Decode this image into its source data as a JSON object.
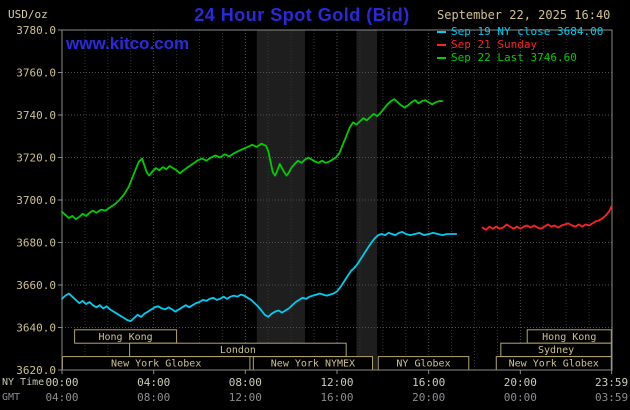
{
  "header": {
    "units": "USD/oz",
    "title": "24 Hour Spot Gold (Bid)",
    "datetime": "September 22, 2025 16:40",
    "site": "www.kitco.com"
  },
  "legend": {
    "items": [
      {
        "label": "Sep 19 NY close 3684.00",
        "color": "#00ccf0"
      },
      {
        "label": "Sep 21 Sunday",
        "color": "#ff2222"
      },
      {
        "label": "Sep 22 Last 3746.60",
        "color": "#00cc00"
      }
    ]
  },
  "axes": {
    "x_ny": {
      "label": "NY Time",
      "ticks": [
        "00:00",
        "04:00",
        "08:00",
        "12:00",
        "16:00",
        "20:00",
        "23:59"
      ]
    },
    "x_gmt": {
      "label": "GMT",
      "ticks": [
        "04:00",
        "08:00",
        "12:00",
        "16:00",
        "20:00",
        "00:00",
        "03:59"
      ]
    }
  },
  "style": {
    "band": "#1e1e1e",
    "grid_minor": "#343434",
    "grid_major": "#4f4f4f",
    "frame": "#8a8a8a",
    "axis_text": "#cdc08c",
    "xlabel_ny": "#cdcdb8",
    "xlabel_gmt": "#8d8d8d",
    "session_border": "#b3a568",
    "session_text": "#cdc08c",
    "title_blue": "#2929dd",
    "date_tan": "#cfc28e"
  },
  "chart_data": {
    "type": "line",
    "title": "24 Hour Spot Gold (Bid)",
    "y_unit": "USD/oz",
    "x_unit": "hours, NY time",
    "xlim": [
      0,
      24
    ],
    "ylim": [
      3620,
      3780
    ],
    "y_ticks": [
      3620,
      3640,
      3660,
      3680,
      3700,
      3720,
      3740,
      3760,
      3780
    ],
    "x_ticks_hours": [
      0,
      4,
      8,
      12,
      16,
      20,
      23.983
    ],
    "grid": true,
    "legend_position": "top-right",
    "bands": [
      {
        "start_h": 8.5,
        "end_h": 10.6
      },
      {
        "start_h": 12.85,
        "end_h": 13.75
      }
    ],
    "series": [
      {
        "name": "Sep 19 NY close",
        "close": 3684.0,
        "color": "#00ccf0",
        "points": [
          [
            0.0,
            3653.5
          ],
          [
            0.15,
            3655
          ],
          [
            0.3,
            3656
          ],
          [
            0.45,
            3654.5
          ],
          [
            0.6,
            3653
          ],
          [
            0.75,
            3651.5
          ],
          [
            0.9,
            3652.5
          ],
          [
            1.05,
            3651
          ],
          [
            1.2,
            3652
          ],
          [
            1.35,
            3650.5
          ],
          [
            1.5,
            3649.5
          ],
          [
            1.65,
            3650.5
          ],
          [
            1.8,
            3649
          ],
          [
            1.95,
            3650
          ],
          [
            2.1,
            3648.5
          ],
          [
            2.25,
            3647.5
          ],
          [
            2.4,
            3646.5
          ],
          [
            2.55,
            3645.5
          ],
          [
            2.7,
            3644.5
          ],
          [
            2.85,
            3643.5
          ],
          [
            3.0,
            3643
          ],
          [
            3.15,
            3644.5
          ],
          [
            3.3,
            3646
          ],
          [
            3.45,
            3645
          ],
          [
            3.6,
            3646.5
          ],
          [
            3.75,
            3647.5
          ],
          [
            3.9,
            3648.5
          ],
          [
            4.05,
            3649.5
          ],
          [
            4.2,
            3650
          ],
          [
            4.35,
            3649
          ],
          [
            4.5,
            3648.5
          ],
          [
            4.65,
            3649.5
          ],
          [
            4.8,
            3648.5
          ],
          [
            4.95,
            3647.5
          ],
          [
            5.1,
            3648.5
          ],
          [
            5.25,
            3649.5
          ],
          [
            5.4,
            3650.5
          ],
          [
            5.55,
            3649.5
          ],
          [
            5.7,
            3650.5
          ],
          [
            5.85,
            3651.5
          ],
          [
            6.0,
            3652
          ],
          [
            6.15,
            3653
          ],
          [
            6.3,
            3652.5
          ],
          [
            6.45,
            3653.5
          ],
          [
            6.6,
            3654
          ],
          [
            6.75,
            3653
          ],
          [
            6.9,
            3653.5
          ],
          [
            7.05,
            3654.5
          ],
          [
            7.2,
            3653.5
          ],
          [
            7.35,
            3654.5
          ],
          [
            7.5,
            3655
          ],
          [
            7.65,
            3654.5
          ],
          [
            7.8,
            3655.5
          ],
          [
            7.95,
            3655
          ],
          [
            8.1,
            3654
          ],
          [
            8.25,
            3653
          ],
          [
            8.4,
            3651.5
          ],
          [
            8.55,
            3650
          ],
          [
            8.7,
            3648
          ],
          [
            8.85,
            3646
          ],
          [
            9.0,
            3645
          ],
          [
            9.15,
            3646.5
          ],
          [
            9.3,
            3647.5
          ],
          [
            9.45,
            3648
          ],
          [
            9.6,
            3647
          ],
          [
            9.75,
            3648
          ],
          [
            9.9,
            3649
          ],
          [
            10.05,
            3650.5
          ],
          [
            10.2,
            3652
          ],
          [
            10.35,
            3653
          ],
          [
            10.5,
            3654
          ],
          [
            10.65,
            3653.5
          ],
          [
            10.8,
            3654.5
          ],
          [
            10.95,
            3655
          ],
          [
            11.1,
            3655.5
          ],
          [
            11.25,
            3656
          ],
          [
            11.4,
            3655.5
          ],
          [
            11.55,
            3655
          ],
          [
            11.7,
            3655.5
          ],
          [
            11.85,
            3656
          ],
          [
            12.0,
            3657
          ],
          [
            12.15,
            3659
          ],
          [
            12.3,
            3661.5
          ],
          [
            12.45,
            3664
          ],
          [
            12.6,
            3666.5
          ],
          [
            12.75,
            3668
          ],
          [
            12.9,
            3670
          ],
          [
            13.05,
            3672.5
          ],
          [
            13.2,
            3675
          ],
          [
            13.35,
            3677.5
          ],
          [
            13.5,
            3680
          ],
          [
            13.65,
            3682
          ],
          [
            13.8,
            3683.5
          ],
          [
            13.95,
            3684
          ],
          [
            14.1,
            3683.5
          ],
          [
            14.25,
            3684.5
          ],
          [
            14.4,
            3684
          ],
          [
            14.55,
            3683.5
          ],
          [
            14.7,
            3684.5
          ],
          [
            14.85,
            3685
          ],
          [
            15.0,
            3684
          ],
          [
            15.2,
            3683.5
          ],
          [
            15.4,
            3684
          ],
          [
            15.6,
            3684.5
          ],
          [
            15.8,
            3683.5
          ],
          [
            16.0,
            3684
          ],
          [
            16.2,
            3684.5
          ],
          [
            16.4,
            3684
          ],
          [
            16.6,
            3683.5
          ],
          [
            16.8,
            3684
          ],
          [
            17.0,
            3684
          ],
          [
            17.2,
            3684
          ]
        ]
      },
      {
        "name": "Sep 21 Sunday",
        "color": "#ff2222",
        "points": [
          [
            18.35,
            3687
          ],
          [
            18.5,
            3686
          ],
          [
            18.65,
            3687.5
          ],
          [
            18.8,
            3686.5
          ],
          [
            18.95,
            3687.5
          ],
          [
            19.1,
            3686.5
          ],
          [
            19.25,
            3687
          ],
          [
            19.4,
            3688.5
          ],
          [
            19.55,
            3687.5
          ],
          [
            19.7,
            3686.5
          ],
          [
            19.85,
            3687.5
          ],
          [
            20.0,
            3686.5
          ],
          [
            20.15,
            3687.5
          ],
          [
            20.3,
            3688
          ],
          [
            20.45,
            3687
          ],
          [
            20.6,
            3688
          ],
          [
            20.75,
            3687
          ],
          [
            20.9,
            3686.5
          ],
          [
            21.05,
            3687.5
          ],
          [
            21.2,
            3688.5
          ],
          [
            21.35,
            3687.5
          ],
          [
            21.5,
            3688
          ],
          [
            21.65,
            3687
          ],
          [
            21.8,
            3688
          ],
          [
            21.95,
            3688.5
          ],
          [
            22.1,
            3689
          ],
          [
            22.25,
            3688
          ],
          [
            22.4,
            3687.5
          ],
          [
            22.55,
            3688.5
          ],
          [
            22.7,
            3687.5
          ],
          [
            22.85,
            3688.5
          ],
          [
            23.0,
            3688
          ],
          [
            23.15,
            3689
          ],
          [
            23.3,
            3690
          ],
          [
            23.45,
            3690.5
          ],
          [
            23.6,
            3691.5
          ],
          [
            23.75,
            3693
          ],
          [
            23.9,
            3695
          ],
          [
            23.98,
            3697
          ]
        ]
      },
      {
        "name": "Sep 22 Last",
        "last": 3746.6,
        "color": "#00cc00",
        "points": [
          [
            0.0,
            3694.5
          ],
          [
            0.15,
            3693
          ],
          [
            0.3,
            3691.5
          ],
          [
            0.45,
            3692.5
          ],
          [
            0.6,
            3691
          ],
          [
            0.75,
            3692
          ],
          [
            0.9,
            3693.5
          ],
          [
            1.05,
            3692.5
          ],
          [
            1.2,
            3694
          ],
          [
            1.35,
            3695
          ],
          [
            1.5,
            3694
          ],
          [
            1.7,
            3695.5
          ],
          [
            1.9,
            3695
          ],
          [
            2.1,
            3696.5
          ],
          [
            2.3,
            3698
          ],
          [
            2.5,
            3700
          ],
          [
            2.7,
            3702.5
          ],
          [
            2.9,
            3706
          ],
          [
            3.05,
            3710
          ],
          [
            3.2,
            3714
          ],
          [
            3.35,
            3718
          ],
          [
            3.5,
            3719.5
          ],
          [
            3.6,
            3716
          ],
          [
            3.7,
            3713
          ],
          [
            3.8,
            3711.5
          ],
          [
            3.95,
            3713.5
          ],
          [
            4.1,
            3715
          ],
          [
            4.25,
            3714
          ],
          [
            4.4,
            3715.5
          ],
          [
            4.55,
            3714.5
          ],
          [
            4.7,
            3716
          ],
          [
            4.85,
            3715
          ],
          [
            5.0,
            3714
          ],
          [
            5.15,
            3712.5
          ],
          [
            5.3,
            3714
          ],
          [
            5.5,
            3715.5
          ],
          [
            5.7,
            3717
          ],
          [
            5.9,
            3718.5
          ],
          [
            6.1,
            3719.5
          ],
          [
            6.3,
            3718.5
          ],
          [
            6.5,
            3720
          ],
          [
            6.7,
            3721
          ],
          [
            6.9,
            3720
          ],
          [
            7.1,
            3721.5
          ],
          [
            7.3,
            3720.5
          ],
          [
            7.5,
            3722
          ],
          [
            7.7,
            3723
          ],
          [
            7.9,
            3724
          ],
          [
            8.1,
            3725
          ],
          [
            8.3,
            3726
          ],
          [
            8.5,
            3725
          ],
          [
            8.7,
            3726.5
          ],
          [
            8.9,
            3725.5
          ],
          [
            9.0,
            3723
          ],
          [
            9.1,
            3718
          ],
          [
            9.2,
            3713
          ],
          [
            9.3,
            3711.5
          ],
          [
            9.4,
            3714
          ],
          [
            9.5,
            3717
          ],
          [
            9.6,
            3715
          ],
          [
            9.7,
            3713
          ],
          [
            9.8,
            3711.5
          ],
          [
            9.9,
            3713
          ],
          [
            10.0,
            3715
          ],
          [
            10.15,
            3717
          ],
          [
            10.3,
            3718.5
          ],
          [
            10.45,
            3717.5
          ],
          [
            10.6,
            3719
          ],
          [
            10.75,
            3720
          ],
          [
            10.9,
            3719
          ],
          [
            11.05,
            3718
          ],
          [
            11.2,
            3717.5
          ],
          [
            11.35,
            3718.5
          ],
          [
            11.5,
            3717.5
          ],
          [
            11.65,
            3718
          ],
          [
            11.8,
            3719
          ],
          [
            11.95,
            3720
          ],
          [
            12.1,
            3722
          ],
          [
            12.25,
            3726
          ],
          [
            12.4,
            3730
          ],
          [
            12.55,
            3734
          ],
          [
            12.7,
            3736.5
          ],
          [
            12.85,
            3735.5
          ],
          [
            13.0,
            3737
          ],
          [
            13.15,
            3738.5
          ],
          [
            13.3,
            3737.5
          ],
          [
            13.45,
            3739
          ],
          [
            13.6,
            3740.5
          ],
          [
            13.75,
            3739.5
          ],
          [
            13.9,
            3741
          ],
          [
            14.05,
            3743
          ],
          [
            14.2,
            3745
          ],
          [
            14.35,
            3746.5
          ],
          [
            14.5,
            3747.5
          ],
          [
            14.65,
            3746
          ],
          [
            14.8,
            3744.5
          ],
          [
            14.95,
            3743.5
          ],
          [
            15.1,
            3744.5
          ],
          [
            15.25,
            3746
          ],
          [
            15.4,
            3747
          ],
          [
            15.55,
            3745.5
          ],
          [
            15.7,
            3746.5
          ],
          [
            15.85,
            3747
          ],
          [
            16.0,
            3746
          ],
          [
            16.15,
            3745
          ],
          [
            16.3,
            3746
          ],
          [
            16.45,
            3746.5
          ],
          [
            16.6,
            3746.6
          ]
        ]
      }
    ],
    "sessions": [
      {
        "row": 0,
        "start_h": 0.55,
        "end_h": 5.0,
        "label": "Hong Kong"
      },
      {
        "row": 0,
        "start_h": 20.3,
        "end_h": 23.97,
        "label": "Hong Kong"
      },
      {
        "row": 1,
        "start_h": 2.95,
        "end_h": 12.4,
        "label": "London"
      },
      {
        "row": 1,
        "start_h": 19.15,
        "end_h": 23.97,
        "label": "Sydney"
      },
      {
        "row": 2,
        "start_h": 0.02,
        "end_h": 8.2,
        "label": "New York Globex"
      },
      {
        "row": 2,
        "start_h": 8.35,
        "end_h": 13.55,
        "label": "New York NYMEX"
      },
      {
        "row": 2,
        "start_h": 13.8,
        "end_h": 17.75,
        "label": "NY Globex"
      },
      {
        "row": 2,
        "start_h": 18.95,
        "end_h": 23.97,
        "label": "New York Globex"
      }
    ]
  }
}
